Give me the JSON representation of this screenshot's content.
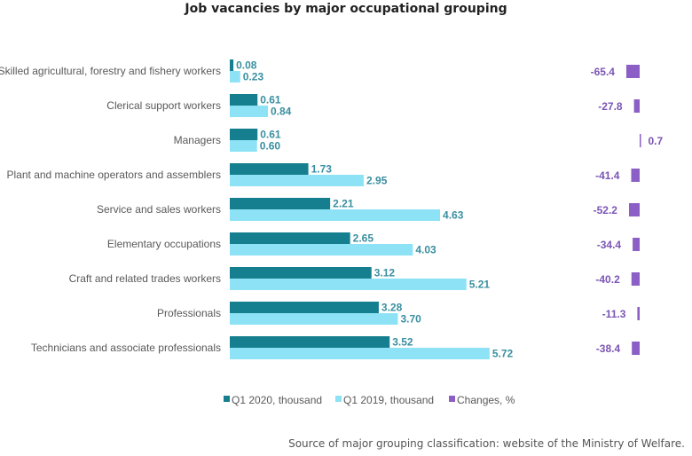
{
  "chart_data": {
    "type": "bar",
    "orientation": "horizontal",
    "title": "Job vacancies by major occupational grouping",
    "categories": [
      "Skilled agricultural, forestry and fishery workers",
      "Clerical support workers",
      "Managers",
      "Plant and machine operators and assemblers",
      "Service and sales workers",
      "Elementary occupations",
      "Craft and related trades workers",
      "Professionals",
      "Technicians and associate professionals"
    ],
    "series": [
      {
        "name": "Q1 2020, thousand",
        "values": [
          0.08,
          0.61,
          0.61,
          1.73,
          2.21,
          2.65,
          3.12,
          3.28,
          3.52
        ],
        "labels": [
          "0.08",
          "0.61",
          "0.61",
          "1.73",
          "2.21",
          "2.65",
          "3.12",
          "3.28",
          "3.52"
        ],
        "color": "#167f8f"
      },
      {
        "name": "Q1 2019, thousand",
        "values": [
          0.23,
          0.84,
          0.6,
          2.95,
          4.63,
          4.03,
          5.21,
          3.7,
          5.72
        ],
        "labels": [
          "0.23",
          "0.84",
          "0.60",
          "2.95",
          "4.63",
          "4.03",
          "5.21",
          "3.70",
          "5.72"
        ],
        "color": "#8de3f5"
      },
      {
        "name": "Changes, %",
        "values": [
          -65.4,
          -27.8,
          0.7,
          -41.4,
          -52.2,
          -34.4,
          -40.2,
          -11.3,
          -38.4
        ],
        "labels": [
          "-65.4",
          "-27.8",
          "0.7",
          "-41.4",
          "-52.2",
          "-34.4",
          "-40.2",
          "-11.3",
          "-38.4"
        ],
        "color": "#8b5fc6"
      }
    ],
    "legend_position": "bottom",
    "grid": false,
    "label_colors": {
      "thousand": "#3a8fa0",
      "changes": "#7b55b3"
    },
    "source": "Source of major grouping classification: website of the Ministry of Welfare."
  }
}
